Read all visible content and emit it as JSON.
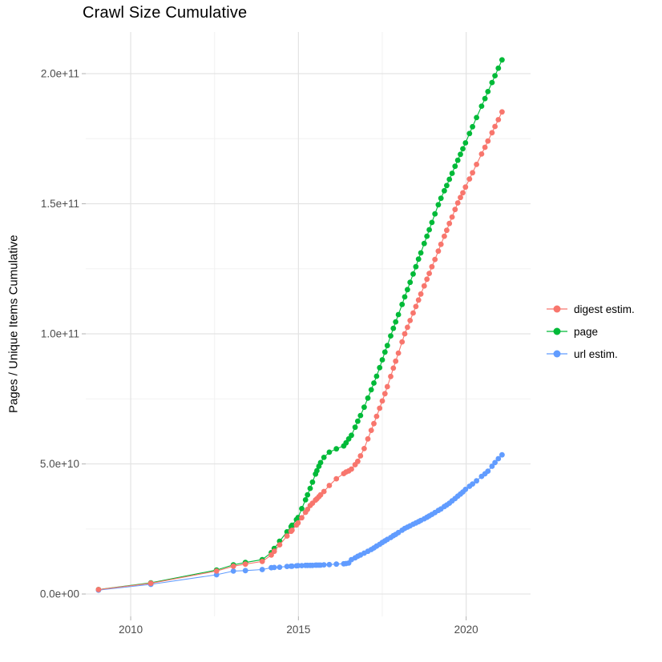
{
  "chart_data": {
    "type": "scatter",
    "title": "Crawl Size Cumulative",
    "xlabel": "",
    "ylabel": "Pages / Unique Items Cumulative",
    "grid": true,
    "legend_position": "right-center",
    "y_unit": "1e9 (values below are billions; tick labels use scientific notation)",
    "x_domain": [
      2008.66,
      2021.92
    ],
    "y_domain": [
      -8.6,
      216
    ],
    "x_ticks": {
      "values": [
        2010,
        2015,
        2020
      ],
      "labels": [
        "2010",
        "2015",
        "2020"
      ]
    },
    "x_minor": [
      2012.5,
      2017.5
    ],
    "y_ticks": {
      "values": [
        0,
        50,
        100,
        150,
        200
      ],
      "labels": [
        "0.0e+00",
        "5.0e+10",
        "1.0e+11",
        "1.5e+11",
        "2.0e+11"
      ]
    },
    "y_minor": [
      25,
      75,
      125,
      175
    ],
    "x": [
      2009.04,
      2010.6,
      2012.56,
      2013.06,
      2013.42,
      2013.92,
      2014.19,
      2014.28,
      2014.44,
      2014.66,
      2014.78,
      2014.81,
      2014.94,
      2014.99,
      2015.1,
      2015.21,
      2015.27,
      2015.35,
      2015.42,
      2015.51,
      2015.55,
      2015.61,
      2015.66,
      2015.76,
      2015.92,
      2016.13,
      2016.35,
      2016.42,
      2016.5,
      2016.58,
      2016.69,
      2016.77,
      2016.85,
      2016.96,
      2017.07,
      2017.17,
      2017.25,
      2017.33,
      2017.42,
      2017.5,
      2017.58,
      2017.65,
      2017.75,
      2017.83,
      2017.9,
      2017.98,
      2018.09,
      2018.17,
      2018.25,
      2018.33,
      2018.42,
      2018.5,
      2018.58,
      2018.65,
      2018.75,
      2018.83,
      2018.9,
      2018.98,
      2019.07,
      2019.17,
      2019.25,
      2019.35,
      2019.42,
      2019.5,
      2019.58,
      2019.67,
      2019.75,
      2019.83,
      2019.9,
      2019.98,
      2020.1,
      2020.19,
      2020.31,
      2020.46,
      2020.56,
      2020.65,
      2020.77,
      2020.86,
      2020.96,
      2021.07
    ],
    "series": [
      {
        "name": "digest estim.",
        "color": "#F8766D",
        "values": [
          1.7,
          4.1,
          8.8,
          10.7,
          11.5,
          12.5,
          15,
          16.4,
          18.9,
          22.3,
          24.1,
          24.5,
          26.5,
          27.3,
          29.3,
          31.4,
          32.5,
          34,
          34.9,
          36.1,
          36.6,
          37.4,
          38.1,
          39.4,
          41.7,
          44.3,
          46.3,
          46.9,
          47.3,
          48,
          49.7,
          51,
          53.1,
          55.9,
          59.6,
          62.9,
          65.5,
          68.3,
          71.4,
          74.2,
          77,
          79.7,
          83.6,
          86.8,
          89.5,
          92.6,
          96.9,
          100,
          102.5,
          105.1,
          108,
          110.5,
          113,
          115.3,
          118.4,
          121,
          123.2,
          125.8,
          128.6,
          131.8,
          134.4,
          137.5,
          139.8,
          142.4,
          144.9,
          147.8,
          150.3,
          152.4,
          154.2,
          156.4,
          159.5,
          161.9,
          165.1,
          169.1,
          171.7,
          174.1,
          177.3,
          179.7,
          182.3,
          185.3
        ]
      },
      {
        "name": "page",
        "color": "#00BA38",
        "values": [
          1.7,
          4.3,
          9.2,
          11.2,
          12.1,
          13.2,
          15.9,
          17.5,
          20.3,
          23.9,
          25.9,
          26.4,
          28.6,
          29.4,
          32.8,
          36.2,
          38.1,
          40.6,
          43,
          46.1,
          47.4,
          49.1,
          50.5,
          52.5,
          54.5,
          55.8,
          56.9,
          58.1,
          59.6,
          61,
          64.1,
          66.4,
          68.6,
          71.8,
          75.3,
          78.5,
          81.1,
          83.7,
          87,
          90,
          93,
          95.5,
          99.2,
          102.1,
          104.6,
          107.4,
          111.3,
          114.2,
          117,
          119.8,
          123,
          125.8,
          128.7,
          131.1,
          134.7,
          137.5,
          140,
          142.8,
          146.1,
          149.6,
          152.1,
          155,
          157,
          159.4,
          161.7,
          164.4,
          166.7,
          169,
          171.1,
          173.4,
          177,
          179.6,
          183.1,
          187.5,
          190.4,
          193.1,
          196.6,
          199.2,
          202.1,
          205.3
        ]
      },
      {
        "name": "url estim.",
        "color": "#619CFF",
        "values": [
          1.5,
          3.7,
          7.4,
          8.8,
          9,
          9.4,
          10.1,
          10.2,
          10.3,
          10.6,
          10.7,
          10.7,
          10.8,
          10.9,
          10.9,
          11,
          11,
          11,
          11,
          11.1,
          11.1,
          11.1,
          11.1,
          11.2,
          11.3,
          11.5,
          11.6,
          11.7,
          11.9,
          13.2,
          13.9,
          14.5,
          15,
          15.7,
          16.4,
          17.1,
          17.7,
          18.4,
          19.1,
          19.8,
          20.4,
          21,
          21.7,
          22.4,
          22.9,
          23.6,
          24.5,
          25.2,
          25.7,
          26.2,
          26.8,
          27.3,
          27.8,
          28.3,
          28.9,
          29.5,
          30,
          30.6,
          31.3,
          32.1,
          32.7,
          33.6,
          34.2,
          34.9,
          35.8,
          36.7,
          37.6,
          38.4,
          39.2,
          40.2,
          41.4,
          42.3,
          43.5,
          45.2,
          46.2,
          47.2,
          49.1,
          50.5,
          52,
          53.5
        ]
      }
    ],
    "style": {
      "major_grid_color": "#e3e3e3",
      "minor_grid_color": "#f0f0f0",
      "tick_mark_color": "#b8b8b8",
      "tick_text_color": "#4d4d4d",
      "point_radius": 3.4
    }
  }
}
